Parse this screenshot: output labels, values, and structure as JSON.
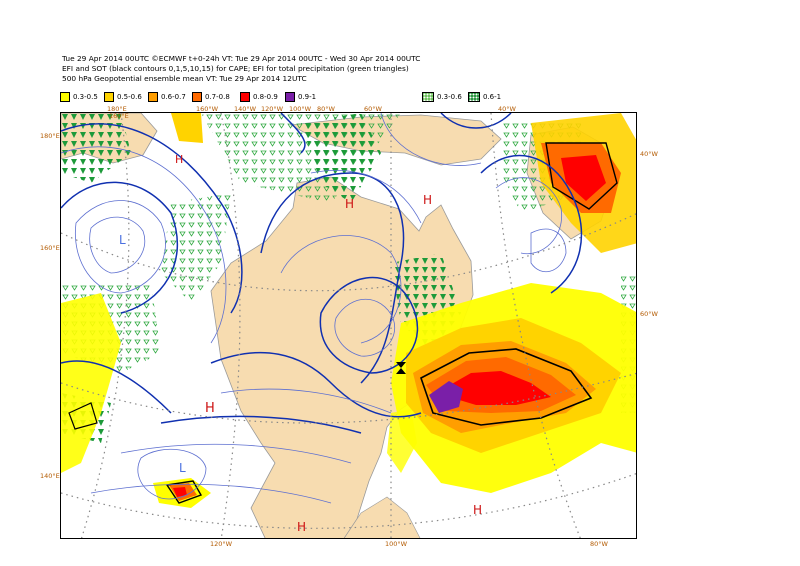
{
  "header": {
    "line1": "Tue 29 Apr 2014 00UTC ©ECMWF t+0-24h  VT: Tue 29 Apr 2014 00UTC - Wed 30 Apr 2014 00UTC",
    "line2": "EFI and SOT (black contours 0,1,5,10,15) for CAPE; EFI for total precipitation (green triangles)",
    "line3": "500 hPa Geopotential ensemble mean VT: Tue 29 Apr 2014 12UTC"
  },
  "legend": {
    "cape": [
      {
        "label": "0.3-0.5",
        "color": "#ffff00"
      },
      {
        "label": "0.5-0.6",
        "color": "#ffd300"
      },
      {
        "label": "0.6-0.7",
        "color": "#ff9e00"
      },
      {
        "label": "0.7-0.8",
        "color": "#ff6a00"
      },
      {
        "label": "0.8-0.9",
        "color": "#ff0000"
      },
      {
        "label": "0.9-1",
        "color": "#7a1fa8"
      }
    ],
    "precip": [
      {
        "label": "0.3-0.6",
        "color": "#5dbb4a"
      },
      {
        "label": "0.6-1",
        "color": "#118a2a"
      }
    ]
  },
  "map": {
    "pressure_markers": {
      "high": "H",
      "low": "L"
    },
    "lon_labels": [
      "160°E",
      "180°E",
      "160°W",
      "140°W",
      "120°W",
      "100°W",
      "80°W",
      "60°W",
      "40°W",
      "120°W",
      "100°W",
      "80°W"
    ],
    "lat_labels": [
      "180°E",
      "160°E",
      "140°E",
      "40°W",
      "60°W"
    ],
    "colors": {
      "land": "#f7dcb0",
      "contour": "#1030b0",
      "contour_thin": "#5d6fd0",
      "coast": "#9a9a9a",
      "grid": "#888888",
      "marker": "#cc1111"
    }
  }
}
